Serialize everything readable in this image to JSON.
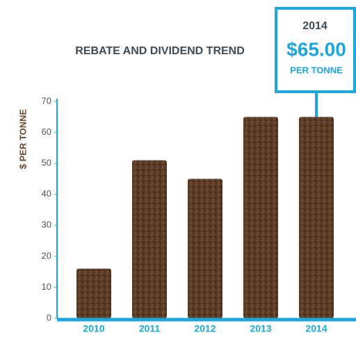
{
  "chart_data": {
    "type": "bar",
    "title": "REBATE AND DIVIDEND TREND",
    "y_label": "$ PER TONNE",
    "categories": [
      "2010",
      "2011",
      "2012",
      "2013",
      "2014"
    ],
    "values": [
      16,
      51,
      45,
      65,
      65
    ],
    "color": "#5b3b28",
    "ylim": [
      0,
      70
    ],
    "yticks": [
      0,
      10,
      20,
      30,
      40,
      50,
      60,
      70
    ],
    "callout": {
      "category": "2014",
      "value": "$65.00",
      "unit": "PER TONNE"
    }
  }
}
